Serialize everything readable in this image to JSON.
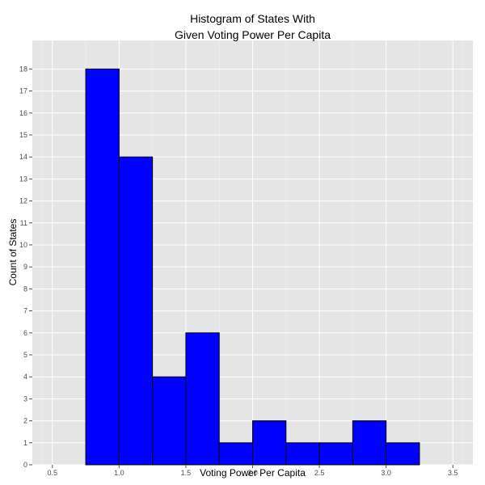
{
  "chart_data": {
    "type": "bar",
    "title_lines": [
      "Histogram of States With",
      "Given Voting Power Per Capita"
    ],
    "xlabel": "Voting Power Per Capita",
    "ylabel": "Count of States",
    "xlim": [
      0.35,
      3.65
    ],
    "ylim": [
      0,
      19.3
    ],
    "x_ticks": [
      "0.5",
      "1.0",
      "1.5",
      "2.0",
      "2.5",
      "3.0",
      "3.5"
    ],
    "x_tick_values": [
      0.5,
      1.0,
      1.5,
      2.0,
      2.5,
      3.0,
      3.5
    ],
    "y_ticks": [
      "0",
      "1",
      "2",
      "3",
      "4",
      "5",
      "6",
      "7",
      "8",
      "9",
      "10",
      "11",
      "12",
      "13",
      "14",
      "15",
      "16",
      "17",
      "18"
    ],
    "y_tick_values": [
      0,
      1,
      2,
      3,
      4,
      5,
      6,
      7,
      8,
      9,
      10,
      11,
      12,
      13,
      14,
      15,
      16,
      17,
      18
    ],
    "bin_width": 0.25,
    "bins": [
      {
        "x0": 0.5,
        "x1": 0.75,
        "count": 0
      },
      {
        "x0": 0.75,
        "x1": 1.0,
        "count": 18
      },
      {
        "x0": 1.0,
        "x1": 1.25,
        "count": 14
      },
      {
        "x0": 1.25,
        "x1": 1.5,
        "count": 4
      },
      {
        "x0": 1.5,
        "x1": 1.75,
        "count": 6
      },
      {
        "x0": 1.75,
        "x1": 2.0,
        "count": 1
      },
      {
        "x0": 2.0,
        "x1": 2.25,
        "count": 2
      },
      {
        "x0": 2.25,
        "x1": 2.5,
        "count": 1
      },
      {
        "x0": 2.5,
        "x1": 2.75,
        "count": 1
      },
      {
        "x0": 2.75,
        "x1": 3.0,
        "count": 2
      },
      {
        "x0": 3.0,
        "x1": 3.25,
        "count": 1
      },
      {
        "x0": 3.25,
        "x1": 3.5,
        "count": 0
      }
    ],
    "grid": true,
    "colors": {
      "bar_fill": "#0000ff",
      "bar_stroke": "#000000",
      "panel_background": "#e5e5e5",
      "grid_major": "#ffffff",
      "grid_minor": "#f2f2f2"
    }
  }
}
